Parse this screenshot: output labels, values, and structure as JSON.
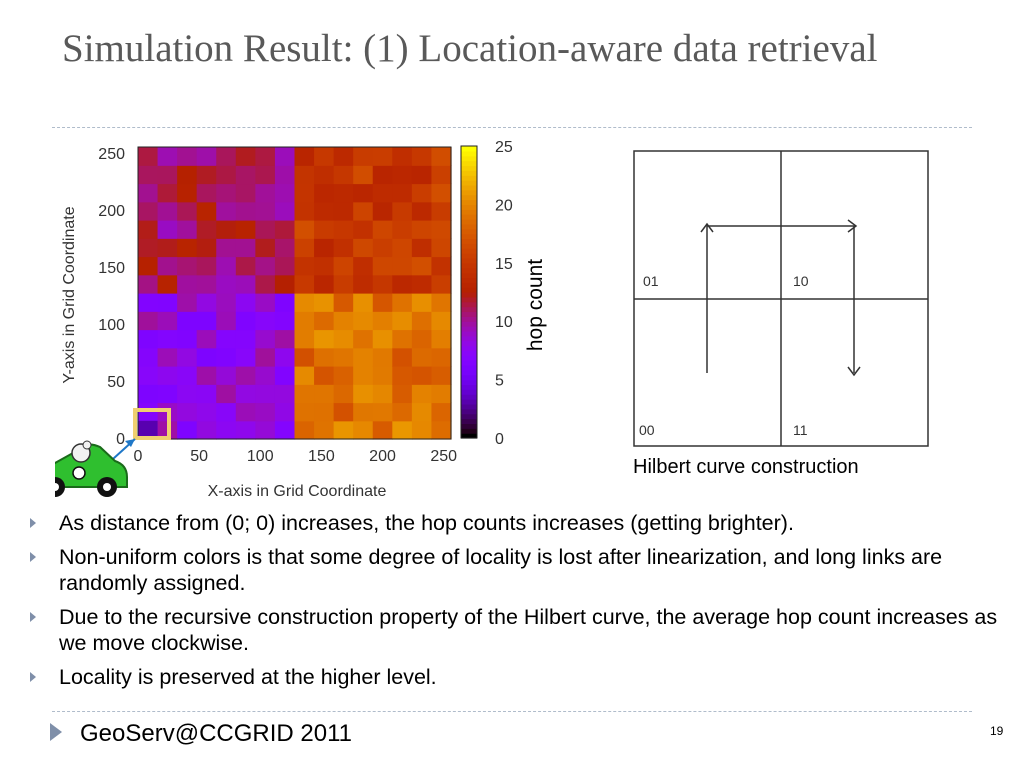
{
  "slide": {
    "title": "Simulation Result: (1) Location-aware data retrieval",
    "footer": "GeoServ@CCGRID 2011",
    "page_number": "19"
  },
  "colors": {
    "accent": "#7f8fa9",
    "highlight_box": "#f0d070",
    "arrow": "#1f78c8"
  },
  "icons": {
    "bullet": "triangle-bullet-icon",
    "car": "car-mascot-icon"
  },
  "heatmap": {
    "xlabel": "X-axis in Grid Coordinate",
    "ylabel": "Y-axis in Grid Coordinate",
    "colorbar_label": "hop count"
  },
  "chart_data": {
    "type": "heatmap",
    "xlabel": "X-axis in Grid Coordinate",
    "ylabel": "Y-axis in Grid Coordinate",
    "colorbar_label": "hop count",
    "xlim": [
      0,
      256
    ],
    "ylim": [
      0,
      256
    ],
    "clim": [
      0,
      25
    ],
    "x_ticks": [
      0,
      50,
      100,
      150,
      200,
      250
    ],
    "y_ticks": [
      0,
      50,
      100,
      150,
      200,
      250
    ],
    "colorbar_ticks": [
      0,
      5,
      10,
      15,
      20,
      25
    ],
    "colormap": "gnuplot",
    "grid_size": 16,
    "quadrant_mean_hop_count": {
      "lower_left": 8,
      "upper_left": 11,
      "upper_right": 15,
      "lower_right": 19
    },
    "highlighted_cell": [
      0,
      0
    ]
  },
  "hilbert": {
    "caption": "Hilbert curve construction",
    "quadrants": [
      {
        "label": "01"
      },
      {
        "label": "10"
      },
      {
        "label": "00"
      },
      {
        "label": "11"
      }
    ]
  },
  "bullets": [
    "As distance from (0; 0) increases, the hop counts increases (getting brighter).",
    "Non-uniform colors is that some degree of locality is lost after linearization, and long links are randomly assigned.",
    "Due to the recursive construction property of the Hilbert curve, the average hop count increases as we move clockwise.",
    "Locality is preserved at the higher level."
  ]
}
